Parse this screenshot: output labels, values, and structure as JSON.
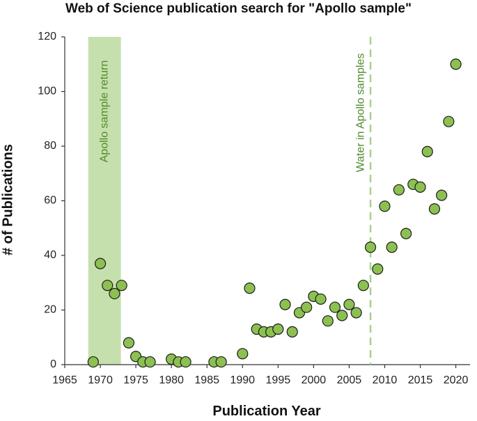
{
  "chart_data": {
    "type": "scatter",
    "title": "Web of Science publication search for \"Apollo sample\"",
    "xlabel": "Publication Year",
    "ylabel": "# of Publications",
    "xlim": [
      1965,
      2022
    ],
    "ylim": [
      0,
      120
    ],
    "x_ticks": [
      "1965",
      "1970",
      "1975",
      "1980",
      "1985",
      "1990",
      "1995",
      "2000",
      "2005",
      "2010",
      "2015",
      "2020"
    ],
    "y_ticks": [
      "0",
      "20",
      "40",
      "60",
      "80",
      "100",
      "120"
    ],
    "grid": false,
    "marker_color": "#8cc152",
    "marker_edge": "#1a1a1a",
    "points": [
      {
        "x": 1969,
        "y": 1
      },
      {
        "x": 1970,
        "y": 37
      },
      {
        "x": 1971,
        "y": 29
      },
      {
        "x": 1972,
        "y": 26
      },
      {
        "x": 1973,
        "y": 29
      },
      {
        "x": 1974,
        "y": 8
      },
      {
        "x": 1975,
        "y": 3
      },
      {
        "x": 1976,
        "y": 1
      },
      {
        "x": 1977,
        "y": 1
      },
      {
        "x": 1980,
        "y": 2
      },
      {
        "x": 1981,
        "y": 1
      },
      {
        "x": 1982,
        "y": 1
      },
      {
        "x": 1986,
        "y": 1
      },
      {
        "x": 1987,
        "y": 1
      },
      {
        "x": 1990,
        "y": 4
      },
      {
        "x": 1991,
        "y": 28
      },
      {
        "x": 1992,
        "y": 13
      },
      {
        "x": 1993,
        "y": 12
      },
      {
        "x": 1994,
        "y": 12
      },
      {
        "x": 1995,
        "y": 13
      },
      {
        "x": 1996,
        "y": 22
      },
      {
        "x": 1997,
        "y": 12
      },
      {
        "x": 1998,
        "y": 19
      },
      {
        "x": 1999,
        "y": 21
      },
      {
        "x": 2000,
        "y": 25
      },
      {
        "x": 2001,
        "y": 24
      },
      {
        "x": 2002,
        "y": 16
      },
      {
        "x": 2003,
        "y": 21
      },
      {
        "x": 2004,
        "y": 18
      },
      {
        "x": 2005,
        "y": 22
      },
      {
        "x": 2006,
        "y": 19
      },
      {
        "x": 2007,
        "y": 29
      },
      {
        "x": 2008,
        "y": 43
      },
      {
        "x": 2009,
        "y": 35
      },
      {
        "x": 2010,
        "y": 58
      },
      {
        "x": 2011,
        "y": 43
      },
      {
        "x": 2012,
        "y": 64
      },
      {
        "x": 2013,
        "y": 48
      },
      {
        "x": 2014,
        "y": 66
      },
      {
        "x": 2015,
        "y": 65
      },
      {
        "x": 2016,
        "y": 78
      },
      {
        "x": 2017,
        "y": 57
      },
      {
        "x": 2018,
        "y": 62
      },
      {
        "x": 2019,
        "y": 89
      },
      {
        "x": 2020,
        "y": 110
      }
    ],
    "annotations": [
      {
        "kind": "band",
        "label": "Apollo sample return",
        "x_start": 1968.3,
        "x_end": 1972.9,
        "color": "#c6e0ad"
      },
      {
        "kind": "dashed-line",
        "label": "Water in Apollo samples",
        "x": 2008,
        "color": "#a9d18e",
        "text_color": "#4f8a2c"
      }
    ]
  }
}
